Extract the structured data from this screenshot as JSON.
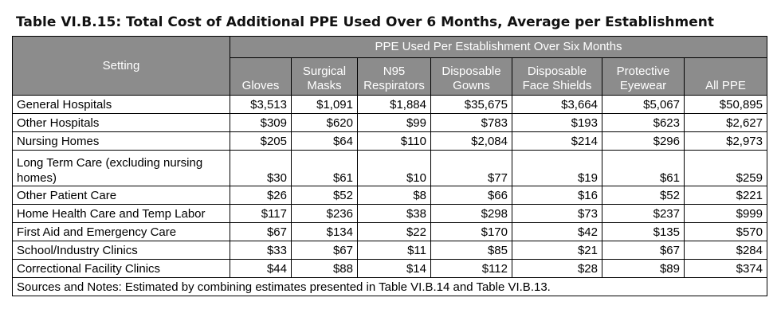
{
  "title": "Table VI.B.15: Total Cost of Additional PPE Used Over 6 Months, Average per Establishment",
  "table": {
    "setting_header": "Setting",
    "group_header": "PPE Used Per Establishment Over Six Months",
    "columns": [
      {
        "line1": "Gloves",
        "line2": ""
      },
      {
        "line1": "Surgical",
        "line2": "Masks"
      },
      {
        "line1": "N95",
        "line2": "Respirators"
      },
      {
        "line1": "Disposable",
        "line2": "Gowns"
      },
      {
        "line1": "Disposable",
        "line2": "Face Shields"
      },
      {
        "line1": "Protective",
        "line2": "Eyewear"
      },
      {
        "line1": "All PPE",
        "line2": ""
      }
    ],
    "rows": [
      {
        "setting": "General Hospitals",
        "values": [
          "$3,513",
          "$1,091",
          "$1,884",
          "$35,675",
          "$3,664",
          "$5,067",
          "$50,895"
        ]
      },
      {
        "setting": "Other Hospitals",
        "values": [
          "$309",
          "$620",
          "$99",
          "$783",
          "$193",
          "$623",
          "$2,627"
        ]
      },
      {
        "setting": "Nursing Homes",
        "values": [
          "$205",
          "$64",
          "$110",
          "$2,084",
          "$214",
          "$296",
          "$2,973"
        ]
      },
      {
        "setting": "Long Term Care (excluding nursing homes)",
        "values": [
          "$30",
          "$61",
          "$10",
          "$77",
          "$19",
          "$61",
          "$259"
        ]
      },
      {
        "setting": "Other Patient Care",
        "values": [
          "$26",
          "$52",
          "$8",
          "$66",
          "$16",
          "$52",
          "$221"
        ]
      },
      {
        "setting": "Home Health Care and Temp Labor",
        "values": [
          "$117",
          "$236",
          "$38",
          "$298",
          "$73",
          "$237",
          "$999"
        ]
      },
      {
        "setting": "First Aid and Emergency Care",
        "values": [
          "$67",
          "$134",
          "$22",
          "$170",
          "$42",
          "$135",
          "$570"
        ]
      },
      {
        "setting": "School/Industry Clinics",
        "values": [
          "$33",
          "$67",
          "$11",
          "$85",
          "$21",
          "$67",
          "$284"
        ]
      },
      {
        "setting": "Correctional Facility Clinics",
        "values": [
          "$44",
          "$88",
          "$14",
          "$112",
          "$28",
          "$89",
          "$374"
        ]
      }
    ],
    "notes": "Sources and Notes: Estimated by combining estimates presented in Table VI.B.14 and Table VI.B.13."
  }
}
